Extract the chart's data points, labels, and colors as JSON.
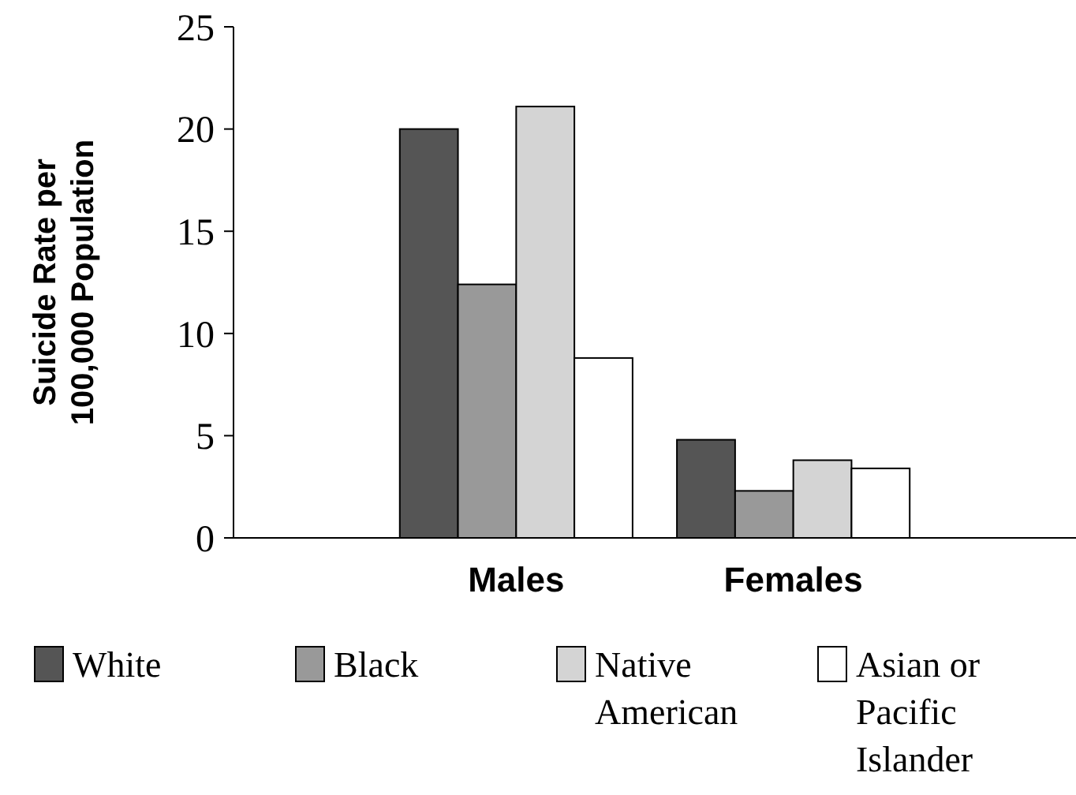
{
  "chart_data": {
    "type": "bar",
    "ylabel": "Suicide Rate per 100,000 Population",
    "categories": [
      "Males",
      "Females"
    ],
    "series": [
      {
        "name": "White",
        "color": "#555555",
        "values": [
          20,
          4.8
        ]
      },
      {
        "name": "Black",
        "color": "#999999",
        "values": [
          12.4,
          2.3
        ]
      },
      {
        "name": "Native American",
        "color": "#d4d4d4",
        "values": [
          21.1,
          3.8
        ]
      },
      {
        "name": "Asian or Pacific Islander",
        "color": "#ffffff",
        "values": [
          8.8,
          3.4
        ]
      }
    ],
    "ylim": [
      0,
      25
    ],
    "yticks": [
      0,
      5,
      10,
      15,
      20,
      25
    ],
    "grid": false,
    "legend": "bottom"
  }
}
